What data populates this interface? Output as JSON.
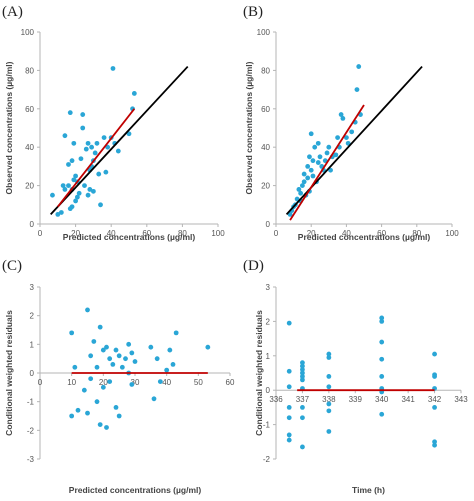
{
  "chart_data": [
    {
      "panel_label": "(A)",
      "type": "scatter",
      "xlabel": "Predicted concentrations (µg/ml)",
      "ylabel": "Observed concentrations (µg/ml)",
      "xlim": [
        0,
        100
      ],
      "ylim": [
        0,
        100
      ],
      "xticks": [
        0,
        20,
        40,
        60,
        80,
        100
      ],
      "yticks": [
        0,
        20,
        40,
        60,
        80,
        100
      ],
      "colors": {
        "points": "#2aa6d6",
        "identity_line": "#000000",
        "regression_line": "#c00000"
      },
      "lines": [
        {
          "role": "identity",
          "x": [
            6,
            83
          ],
          "y": [
            5,
            82
          ]
        },
        {
          "role": "regression",
          "x": [
            10,
            53
          ],
          "y": [
            9,
            60
          ]
        }
      ],
      "points": {
        "x": [
          7,
          10,
          12,
          13,
          14,
          14,
          16,
          16,
          17,
          17,
          18,
          18,
          18,
          19,
          19,
          20,
          20,
          21,
          21,
          22,
          23,
          24,
          24,
          25,
          26,
          27,
          27,
          28,
          28,
          29,
          29,
          30,
          30,
          31,
          32,
          33,
          34,
          36,
          37,
          38,
          40,
          41,
          42,
          44,
          50,
          52,
          53
        ],
        "y": [
          15,
          5,
          6,
          20,
          46,
          18,
          20,
          31,
          58,
          8,
          33,
          9,
          18,
          23,
          42,
          25,
          12,
          22,
          14,
          16,
          34,
          57,
          50,
          20,
          39,
          15,
          42,
          28,
          18,
          30,
          40,
          33,
          17,
          37,
          42,
          26,
          10,
          45,
          27,
          40,
          45,
          81,
          42,
          38,
          47,
          60,
          68
        ]
      }
    },
    {
      "panel_label": "(B)",
      "type": "scatter",
      "xlabel": "Predicted concentrations (µg/ml)",
      "ylabel": "Observed concentrations (µg/ml)",
      "xlim": [
        0,
        100
      ],
      "ylim": [
        0,
        100
      ],
      "xticks": [
        0,
        20,
        40,
        60,
        80,
        100
      ],
      "yticks": [
        0,
        20,
        40,
        60,
        80,
        100
      ],
      "colors": {
        "points": "#2aa6d6",
        "identity_line": "#000000",
        "regression_line": "#c00000"
      },
      "lines": [
        {
          "role": "identity",
          "x": [
            6,
            83
          ],
          "y": [
            5,
            82
          ]
        },
        {
          "role": "regression",
          "x": [
            8,
            50
          ],
          "y": [
            2,
            62
          ]
        }
      ],
      "points": {
        "x": [
          8,
          9,
          10,
          11,
          12,
          13,
          14,
          14,
          15,
          16,
          16,
          17,
          18,
          18,
          19,
          19,
          20,
          20,
          21,
          21,
          22,
          23,
          24,
          24,
          25,
          26,
          27,
          28,
          29,
          30,
          31,
          32,
          34,
          35,
          36,
          37,
          38,
          40,
          41,
          43,
          45,
          46,
          47,
          48
        ],
        "y": [
          5,
          7,
          9,
          10,
          13,
          18,
          12,
          16,
          20,
          22,
          26,
          15,
          30,
          24,
          35,
          17,
          47,
          28,
          33,
          25,
          40,
          22,
          42,
          32,
          35,
          30,
          28,
          33,
          37,
          40,
          28,
          35,
          36,
          45,
          40,
          57,
          55,
          45,
          42,
          48,
          53,
          70,
          82,
          57
        ]
      }
    },
    {
      "panel_label": "(C)",
      "type": "scatter",
      "xlabel": "Predicted concentrations (µg/ml)",
      "ylabel": "Conditional weighted residuals",
      "xlim": [
        0,
        60
      ],
      "ylim": [
        -3,
        3
      ],
      "xticks": [
        0,
        10,
        20,
        30,
        40,
        50,
        60
      ],
      "yticks": [
        -3,
        -2,
        -1,
        0,
        1,
        2,
        3
      ],
      "colors": {
        "points": "#2aa6d6",
        "zero_line": "#c00000"
      },
      "lines": [
        {
          "role": "zero",
          "x": [
            10,
            53
          ],
          "y": [
            0,
            0
          ]
        }
      ],
      "points": {
        "x": [
          10,
          10,
          11,
          12,
          14,
          15,
          15,
          16,
          16,
          17,
          18,
          18,
          19,
          19,
          20,
          20,
          21,
          21,
          22,
          22,
          23,
          24,
          24,
          25,
          25,
          26,
          27,
          28,
          28,
          29,
          29,
          30,
          35,
          36,
          37,
          38,
          40,
          41,
          42,
          43,
          53
        ],
        "y": [
          1.4,
          -1.5,
          0.2,
          -1.3,
          -0.6,
          2.2,
          -1.4,
          0.6,
          -0.2,
          1.1,
          -1.0,
          0.2,
          1.6,
          -1.8,
          0.8,
          -0.5,
          0.9,
          -1.9,
          0.5,
          -0.3,
          0.3,
          0.8,
          -1.2,
          0.6,
          -1.5,
          0.2,
          0.5,
          1.0,
          0.0,
          0.7,
          -0.4,
          0.4,
          0.9,
          -0.9,
          0.5,
          -0.3,
          0.1,
          0.8,
          0.3,
          1.4,
          0.9
        ]
      }
    },
    {
      "panel_label": "(D)",
      "type": "scatter",
      "xlabel": "Time (h)",
      "ylabel": "Conditional weighted residuals",
      "xlim": [
        336,
        343
      ],
      "ylim": [
        -2,
        3
      ],
      "xticks": [
        336,
        337,
        338,
        339,
        340,
        341,
        342,
        343
      ],
      "xtick_labels": [
        "336",
        "337",
        "338",
        "339",
        "340",
        "341",
        "342",
        "343"
      ],
      "yticks": [
        -2,
        -1,
        0,
        1,
        2,
        3
      ],
      "colors": {
        "points": "#2aa6d6",
        "zero_line": "#c00000"
      },
      "lines": [
        {
          "role": "zero",
          "x": [
            336.8,
            342
          ],
          "y": [
            0,
            0
          ]
        }
      ],
      "points": {
        "x": [
          336.5,
          336.5,
          336.5,
          336.5,
          336.5,
          336.5,
          336.5,
          337,
          337,
          337,
          337,
          337,
          337,
          337,
          337,
          337,
          337,
          338,
          338,
          338,
          338,
          338,
          338,
          338,
          340,
          340,
          340,
          340,
          340,
          340,
          340,
          340,
          342,
          342,
          342,
          342,
          342,
          342,
          342
        ],
        "y": [
          1.95,
          0.55,
          0.1,
          -0.5,
          -0.8,
          -1.3,
          -1.45,
          0.8,
          0.7,
          0.6,
          0.5,
          0.4,
          0.3,
          0.05,
          -0.5,
          -0.8,
          -1.65,
          1.05,
          0.95,
          0.4,
          0.1,
          -0.4,
          -0.6,
          -1.2,
          2.1,
          2.0,
          1.4,
          0.9,
          0.4,
          0.05,
          -0.05,
          -0.7,
          1.05,
          0.45,
          0.4,
          0.05,
          -0.5,
          -1.5,
          -1.6
        ]
      }
    }
  ]
}
